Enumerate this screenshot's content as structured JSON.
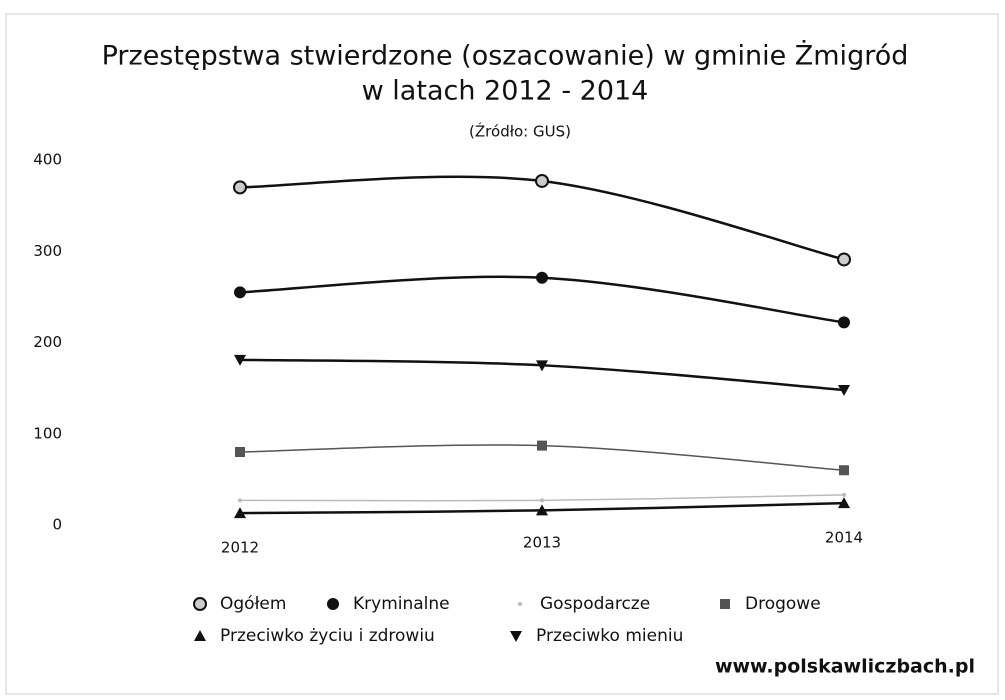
{
  "chart_data": {
    "type": "line",
    "title": [
      "Przestępstwa stwierdzone (oszacowanie) w gminie Żmigród",
      "w latach 2012 - 2014"
    ],
    "subtitle": "(Źródło: GUS)",
    "categories": [
      "2012",
      "2013",
      "2014"
    ],
    "series": [
      {
        "name": "Ogółem",
        "color": "#111111",
        "marker": "circle-open",
        "values": [
          370,
          377,
          291
        ]
      },
      {
        "name": "Kryminalne",
        "color": "#111111",
        "marker": "circle",
        "values": [
          255,
          271,
          222
        ]
      },
      {
        "name": "Gospodarcze",
        "color": "#bbbbbb",
        "marker": "dot",
        "values": [
          27,
          27,
          33
        ]
      },
      {
        "name": "Drogowe",
        "color": "#555555",
        "marker": "square",
        "values": [
          80,
          87,
          60
        ]
      },
      {
        "name": "Przeciwko życiu i zdrowiu",
        "color": "#111111",
        "marker": "triangle-up",
        "values": [
          13,
          16,
          24
        ]
      },
      {
        "name": "Przeciwko mieniu",
        "color": "#111111",
        "marker": "triangle-down",
        "values": [
          181,
          175,
          148
        ]
      }
    ],
    "ylim": [
      0,
      400
    ],
    "yticks": [
      0,
      100,
      200,
      300,
      400
    ],
    "grid": false,
    "source_label": "www.polskawliczbach.pl"
  }
}
